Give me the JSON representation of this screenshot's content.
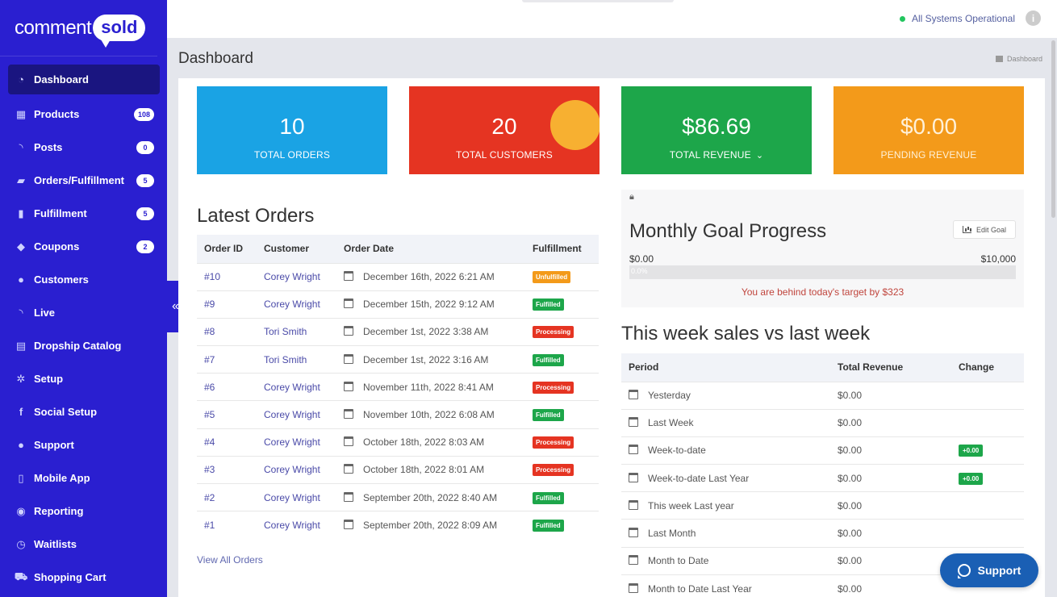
{
  "logo": {
    "word1": "comment",
    "word2": "sold"
  },
  "topbar": {
    "status": "All Systems Operational",
    "info": "i"
  },
  "page": {
    "title": "Dashboard",
    "breadcrumb": "Dashboard"
  },
  "sidebar": {
    "items": [
      {
        "label": "Dashboard",
        "icon": "dashboard-icon",
        "glyph": "◔",
        "badge": ""
      },
      {
        "label": "Products",
        "icon": "grid-icon",
        "glyph": "▦",
        "badge": "108"
      },
      {
        "label": "Posts",
        "icon": "rss-icon",
        "glyph": "◝",
        "badge": "0"
      },
      {
        "label": "Orders/Fulfillment",
        "icon": "truck-icon",
        "glyph": "▰",
        "badge": "5"
      },
      {
        "label": "Fulfillment",
        "icon": "bar-chart-icon",
        "glyph": "▮",
        "badge": "5"
      },
      {
        "label": "Coupons",
        "icon": "tag-icon",
        "glyph": "◆",
        "badge": "2"
      },
      {
        "label": "Customers",
        "icon": "user-icon",
        "glyph": "●",
        "badge": ""
      },
      {
        "label": "Live",
        "icon": "broadcast-icon",
        "glyph": "◝",
        "badge": ""
      },
      {
        "label": "Dropship Catalog",
        "icon": "catalog-icon",
        "glyph": "▤",
        "badge": ""
      },
      {
        "label": "Setup",
        "icon": "gears-icon",
        "glyph": "✲",
        "badge": ""
      },
      {
        "label": "Social Setup",
        "icon": "facebook-icon",
        "glyph": "f",
        "badge": ""
      },
      {
        "label": "Support",
        "icon": "chat-icon",
        "glyph": "●",
        "badge": ""
      },
      {
        "label": "Mobile App",
        "icon": "mobile-icon",
        "glyph": "▯",
        "badge": ""
      },
      {
        "label": "Reporting",
        "icon": "database-icon",
        "glyph": "◉",
        "badge": ""
      },
      {
        "label": "Waitlists",
        "icon": "clock-icon",
        "glyph": "◷",
        "badge": ""
      },
      {
        "label": "Shopping Cart",
        "icon": "cart-icon",
        "glyph": "⛟",
        "badge": ""
      }
    ],
    "collapse": "«"
  },
  "stats": [
    {
      "value": "10",
      "label": "TOTAL ORDERS",
      "color": "#1aa3e4"
    },
    {
      "value": "20",
      "label": "TOTAL CUSTOMERS",
      "color": "#e53422"
    },
    {
      "value": "$86.69",
      "label": "TOTAL REVENUE",
      "chevron": "⌄",
      "color": "#1da64a"
    },
    {
      "value": "$0.00",
      "label": "PENDING REVENUE",
      "color": "#f39a1a"
    }
  ],
  "orders": {
    "title": "Latest Orders",
    "headers": [
      "Order ID",
      "Customer",
      "Order Date",
      "Fulfillment"
    ],
    "rows": [
      {
        "id": "#10",
        "customer": "Corey Wright",
        "date": "December 16th, 2022 6:21 AM",
        "status": "Unfulfilled"
      },
      {
        "id": "#9",
        "customer": "Corey Wright",
        "date": "December 15th, 2022 9:12 AM",
        "status": "Fulfilled"
      },
      {
        "id": "#8",
        "customer": "Tori Smith",
        "date": "December 1st, 2022 3:38 AM",
        "status": "Processing"
      },
      {
        "id": "#7",
        "customer": "Tori Smith",
        "date": "December 1st, 2022 3:16 AM",
        "status": "Fulfilled"
      },
      {
        "id": "#6",
        "customer": "Corey Wright",
        "date": "November 11th, 2022 8:41 AM",
        "status": "Processing"
      },
      {
        "id": "#5",
        "customer": "Corey Wright",
        "date": "November 10th, 2022 6:08 AM",
        "status": "Fulfilled"
      },
      {
        "id": "#4",
        "customer": "Corey Wright",
        "date": "October 18th, 2022 8:03 AM",
        "status": "Processing"
      },
      {
        "id": "#3",
        "customer": "Corey Wright",
        "date": "October 18th, 2022 8:01 AM",
        "status": "Processing"
      },
      {
        "id": "#2",
        "customer": "Corey Wright",
        "date": "September 20th, 2022 8:40 AM",
        "status": "Fulfilled"
      },
      {
        "id": "#1",
        "customer": "Corey Wright",
        "date": "September 20th, 2022 8:09 AM",
        "status": "Fulfilled"
      }
    ],
    "view_all": "View All Orders"
  },
  "goal": {
    "title": "Monthly Goal Progress",
    "edit_label": "Edit Goal",
    "min": "$0.00",
    "max": "$10,000",
    "progress_text": "0.0%",
    "progress_fraction": 0.0,
    "note": "You are behind today's target by $323"
  },
  "weekly": {
    "title": "This week sales vs last week",
    "headers": [
      "Period",
      "Total Revenue",
      "Change"
    ],
    "rows": [
      {
        "period": "Yesterday",
        "revenue": "$0.00",
        "change": ""
      },
      {
        "period": "Last Week",
        "revenue": "$0.00",
        "change": ""
      },
      {
        "period": "Week-to-date",
        "revenue": "$0.00",
        "change": "+0.00"
      },
      {
        "period": "Week-to-date Last Year",
        "revenue": "$0.00",
        "change": "+0.00"
      },
      {
        "period": "This week Last year",
        "revenue": "$0.00",
        "change": ""
      },
      {
        "period": "Last Month",
        "revenue": "$0.00",
        "change": ""
      },
      {
        "period": "Month to Date",
        "revenue": "$0.00",
        "change": ""
      },
      {
        "period": "Month to Date Last Year",
        "revenue": "$0.00",
        "change": ""
      }
    ]
  },
  "support_button": {
    "label": "Support"
  }
}
